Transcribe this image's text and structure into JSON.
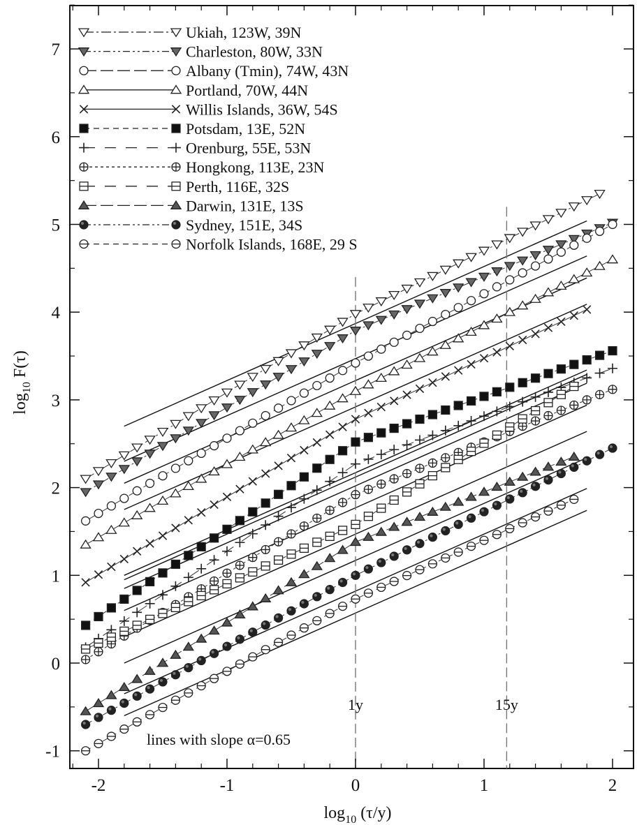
{
  "chart_data": {
    "type": "scatter",
    "xlabel": "log10(τ/y)",
    "ylabel": "log10 F(τ)",
    "xlim": [
      -2.2,
      2.2
    ],
    "ylim": [
      -1.25,
      7.5
    ],
    "x_ticks": [
      "-2",
      "-1",
      "0",
      "1",
      "2"
    ],
    "y_ticks": [
      "-1",
      "0",
      "1",
      "2",
      "3",
      "4",
      "5",
      "6",
      "7"
    ],
    "grid": false,
    "legend_position": "top-left",
    "series": [
      {
        "name": "Ukiah, 123W, 39N",
        "marker": "triangle-down-open",
        "line": "dash-dot",
        "y0": 2.1,
        "y1y": 3.98,
        "yend": 5.4,
        "xend": 1.97
      },
      {
        "name": "Charleston, 80W, 33N",
        "marker": "triangle-down-filled",
        "line": "dash-dot-dot",
        "y0": 1.95,
        "y1y": 3.79,
        "yend": 5.05,
        "xend": 2.05
      },
      {
        "name": "Albany (Tmin), 74W, 43N",
        "marker": "circle-open",
        "line": "long-dash",
        "y0": 1.62,
        "y1y": 3.42,
        "yend": 5.0,
        "xend": 2.0
      },
      {
        "name": "Portland, 70W, 44N",
        "marker": "triangle-up-open",
        "line": "solid",
        "y0": 1.35,
        "y1y": 3.1,
        "yend": 4.6,
        "xend": 2.0
      },
      {
        "name": "Willis Islands, 36W, 54S",
        "marker": "x",
        "line": "solid",
        "y0": 0.92,
        "y1y": 2.78,
        "yend": 4.03,
        "xend": 1.8
      },
      {
        "name": "Potsdam, 13E, 52N",
        "marker": "square-filled",
        "line": "short-dash",
        "y0": 0.43,
        "y1y": 2.52,
        "yend": 3.57,
        "xend": 2.02
      },
      {
        "name": "Orenburg, 55E, 53N",
        "marker": "plus",
        "line": "dash-gap",
        "y0": 0.18,
        "y1y": 2.27,
        "yend": 3.37,
        "xend": 2.02
      },
      {
        "name": "Hongkong, 113E, 23N",
        "marker": "circle-plus",
        "line": "dotted",
        "y0": 0.04,
        "y1y": 1.92,
        "yend": 3.12,
        "xend": 2.0
      },
      {
        "name": "Perth, 116E, 32S",
        "marker": "square-open",
        "line": "dash-gap",
        "y0": 0.16,
        "y1y": 1.58,
        "yend": 3.2,
        "xend": 1.75
      },
      {
        "name": "Darwin, 131E, 13S",
        "marker": "triangle-up-filled",
        "line": "long-dash",
        "y0": -0.55,
        "y1y": 1.38,
        "yend": 2.38,
        "xend": 1.75
      },
      {
        "name": "Sydney, 151E, 34S",
        "marker": "circle-filled",
        "line": "dash-dot-dot",
        "y0": -0.7,
        "y1y": 1.0,
        "yend": 2.45,
        "xend": 2.0
      },
      {
        "name": "Norfolk Islands, 168E, 29 S",
        "marker": "circle-minus",
        "line": "short-dash",
        "y0": -1.0,
        "y1y": 0.73,
        "yend": 1.92,
        "xend": 1.78
      }
    ],
    "reference_lines": {
      "slope": 0.65,
      "x_range": [
        -1.8,
        1.8
      ],
      "y_start": [
        2.7,
        2.3,
        2.05,
        1.75,
        1.0,
        0.95,
        0.85,
        0.6,
        0.3,
        0.0,
        -0.35,
        -0.6
      ]
    },
    "vertical_lines": [
      {
        "x": 0,
        "label": "1y",
        "y_top": 4.4,
        "y_bottom": -1.25
      },
      {
        "x": 1.176,
        "label": "15y",
        "y_top": 5.2,
        "y_bottom": -1.25
      }
    ],
    "annotation": "lines with slope α=0.65"
  }
}
